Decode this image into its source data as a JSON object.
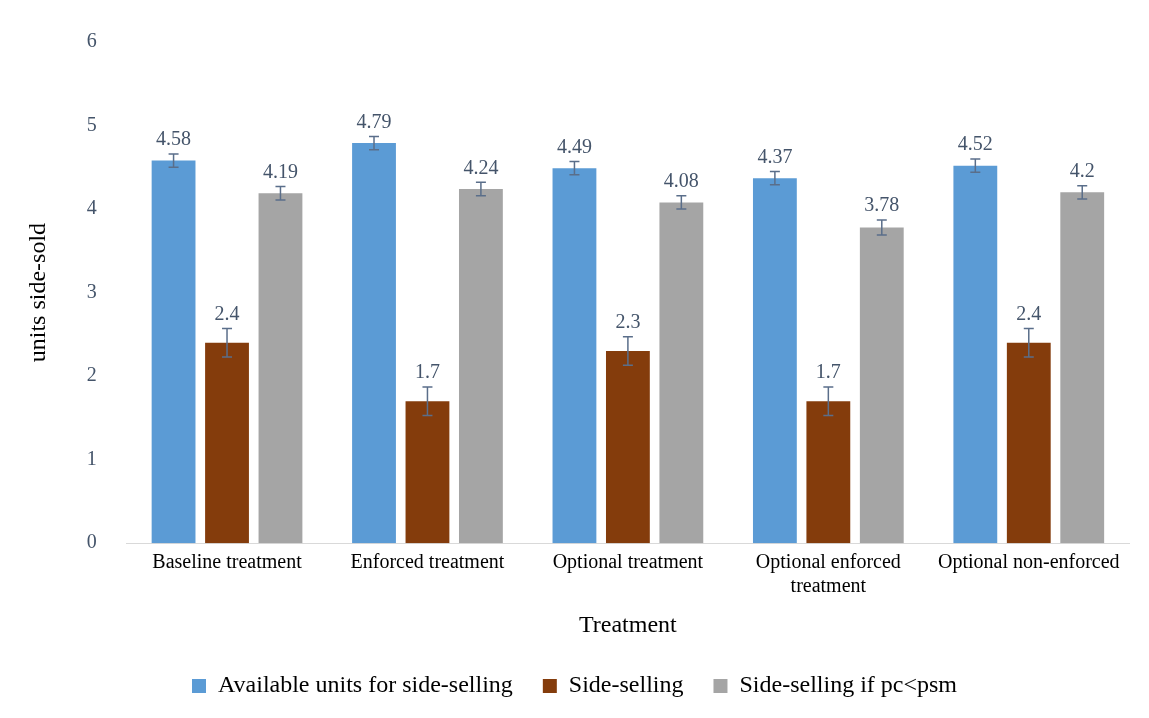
{
  "chart_data": {
    "type": "bar",
    "xlabel": "Treatment",
    "ylabel": "units side-sold",
    "categories": [
      "Baseline treatment",
      "Enforced treatment",
      "Optional treatment",
      "Optional enforced treatment",
      "Optional non-enforced"
    ],
    "series": [
      {
        "name": "Available units for side-selling",
        "color": "#5b9bd5",
        "values": [
          4.58,
          4.79,
          4.49,
          4.37,
          4.52
        ],
        "errors": [
          0.08,
          0.08,
          0.08,
          0.08,
          0.08
        ]
      },
      {
        "name": "Side-selling",
        "color": "#843c0c",
        "values": [
          2.4,
          1.7,
          2.3,
          1.7,
          2.4
        ],
        "errors": [
          0.17,
          0.17,
          0.17,
          0.17,
          0.17
        ]
      },
      {
        "name": "Side-selling if pc<psm",
        "color": "#a5a5a5",
        "values": [
          4.19,
          4.24,
          4.08,
          3.78,
          4.2
        ],
        "errors": [
          0.08,
          0.08,
          0.08,
          0.09,
          0.08
        ]
      }
    ],
    "ylim": [
      0,
      6
    ],
    "yticks": [
      0,
      1,
      2,
      3,
      4,
      5,
      6
    ],
    "grid": false,
    "legend": "bottom",
    "data_labels": true
  }
}
